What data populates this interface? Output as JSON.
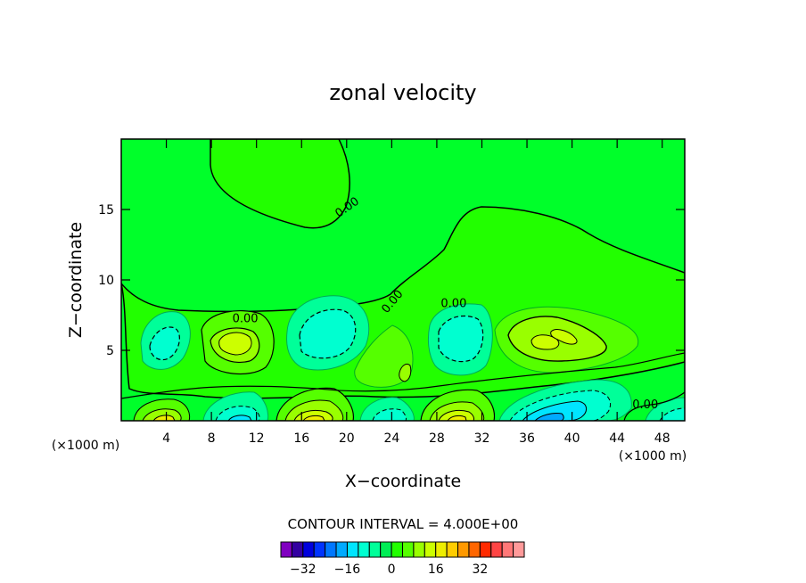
{
  "chart_data": {
    "type": "contour",
    "title": "zonal velocity",
    "xlabel": "X−coordinate",
    "ylabel": "Z−coordinate",
    "x_unit_left": "(×1000 m)",
    "x_unit_right": "(×1000 m)",
    "xlim": [
      0,
      50
    ],
    "ylim": [
      0,
      20
    ],
    "x_ticks": [
      4,
      8,
      12,
      16,
      20,
      24,
      28,
      32,
      36,
      40,
      44,
      48
    ],
    "x_tick_labels": [
      "4",
      "8",
      "12",
      "16",
      "20",
      "24",
      "28",
      "32",
      "36",
      "40",
      "44",
      "48"
    ],
    "y_ticks": [
      5,
      10,
      15
    ],
    "y_tick_labels": [
      "5",
      "10",
      "15"
    ],
    "contour_interval_text": "CONTOUR INTERVAL = 4.000E+00",
    "contour_interval": 4,
    "background_value": 0,
    "contour_labels": [
      {
        "text": "0.00",
        "x": 20,
        "z": 15.2,
        "angle": -35
      },
      {
        "text": "0.00",
        "x": 24,
        "z": 8.5,
        "angle": -50
      },
      {
        "text": "0.00",
        "x": 11,
        "z": 7.3,
        "angle": 0
      },
      {
        "text": "0.00",
        "x": 29.5,
        "z": 8.4,
        "angle": 0
      },
      {
        "text": "0.00",
        "x": 46.5,
        "z": 1.2,
        "angle": 0
      }
    ],
    "features": [
      {
        "x": 3.5,
        "z": 5.5,
        "value": -8
      },
      {
        "x": 10,
        "z": 5.5,
        "value": 12
      },
      {
        "x": 18.5,
        "z": 6.5,
        "value": -8
      },
      {
        "x": 24,
        "z": 4,
        "value": 6
      },
      {
        "x": 30,
        "z": 5.5,
        "value": -8
      },
      {
        "x": 39,
        "z": 5.7,
        "value": 14
      },
      {
        "x": 4,
        "z": 0.5,
        "value": 12
      },
      {
        "x": 10.5,
        "z": 0.5,
        "value": -12
      },
      {
        "x": 17.5,
        "z": 1,
        "value": 16
      },
      {
        "x": 23.5,
        "z": 1,
        "value": -10
      },
      {
        "x": 30,
        "z": 1,
        "value": 16
      },
      {
        "x": 38,
        "z": 1,
        "value": -16
      },
      {
        "x": 47.5,
        "z": 0.8,
        "value": -10
      }
    ],
    "colorbar": {
      "colors": [
        "#8000c0",
        "#3300a0",
        "#0000dd",
        "#0033ff",
        "#0077ff",
        "#00aaff",
        "#00e5ff",
        "#00ffd0",
        "#00ff99",
        "#00ee55",
        "#22ff00",
        "#55ff00",
        "#99ff00",
        "#ccff00",
        "#eeee00",
        "#ffcc00",
        "#ff9900",
        "#ff6600",
        "#ff2a00",
        "#ff4444",
        "#ff7777",
        "#ff9a9a"
      ],
      "tick_values": [
        -32,
        -16,
        0,
        16,
        32
      ],
      "tick_labels": [
        "−32",
        "−16",
        "0",
        "16",
        "32"
      ]
    }
  }
}
